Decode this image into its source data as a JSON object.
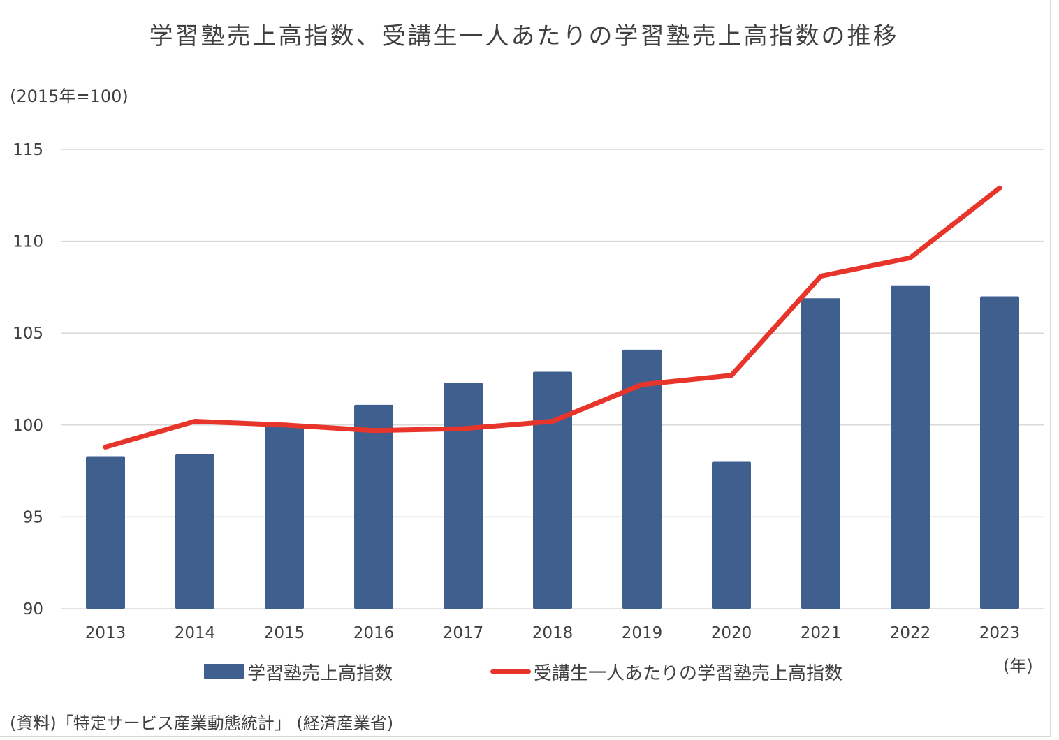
{
  "title": "学習塾売上高指数、受講生一人あたりの学習塾売上高指数の推移",
  "unit_label": "(2015年=100)",
  "x_unit_label": "(年)",
  "source": "(資料)「特定サービス産業動態統計」 (経済産業省)",
  "colors": {
    "bar": "#3f5f8f",
    "line": "#e8352b",
    "grid": "#d9d9d9"
  },
  "chart_data": {
    "type": "bar",
    "title": "学習塾売上高指数、受講生一人あたりの学習塾売上高指数の推移",
    "ylabel": "(2015年=100)",
    "xlabel": "(年)",
    "ylim": [
      90,
      115
    ],
    "yticks": [
      "90",
      "95",
      "100",
      "105",
      "110",
      "115"
    ],
    "grid": true,
    "legend_position": "bottom",
    "categories": [
      "2013",
      "2014",
      "2015",
      "2016",
      "2017",
      "2018",
      "2019",
      "2020",
      "2021",
      "2022",
      "2023"
    ],
    "series": [
      {
        "name": "学習塾売上高指数",
        "type": "bar",
        "values": [
          98.3,
          98.4,
          100.0,
          101.1,
          102.3,
          102.9,
          104.1,
          98.0,
          106.9,
          107.6,
          107.0
        ]
      },
      {
        "name": "受講生一人あたりの学習塾売上高指数",
        "type": "line",
        "values": [
          98.8,
          100.2,
          100.0,
          99.7,
          99.8,
          100.2,
          102.2,
          102.7,
          108.1,
          109.1,
          112.9
        ]
      }
    ]
  }
}
